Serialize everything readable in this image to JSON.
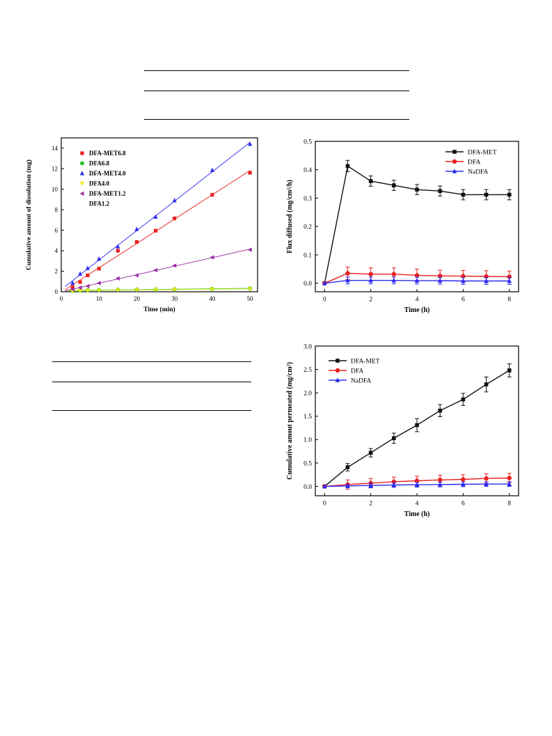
{
  "chart_data": [
    {
      "type": "scatter",
      "title": "",
      "xlabel": "Time (min)",
      "ylabel": "Cumulative amount of dissolution (mg)",
      "xlim": [
        0,
        52
      ],
      "ylim": [
        0,
        15
      ],
      "xticks": [
        0,
        10,
        20,
        30,
        40,
        50
      ],
      "yticks": [
        0,
        2,
        4,
        6,
        8,
        10,
        12,
        14
      ],
      "legend_position": "top-left",
      "fit_lines": true,
      "series": [
        {
          "name": "DFA-MET6.8",
          "color": "#e8201f",
          "marker": "square",
          "x": [
            3,
            5,
            7,
            10,
            15,
            20,
            25,
            30,
            40,
            50
          ],
          "y": [
            0.45,
            0.95,
            1.6,
            2.25,
            4.0,
            4.85,
            5.95,
            7.15,
            9.45,
            11.6
          ]
        },
        {
          "name": "DFA6.8",
          "color": "#28c828",
          "marker": "circle",
          "x": [
            3,
            5,
            7,
            10,
            15,
            20,
            25,
            30,
            40,
            50
          ],
          "y": [
            0.1,
            0.12,
            0.15,
            0.17,
            0.2,
            0.22,
            0.24,
            0.25,
            0.28,
            0.32
          ]
        },
        {
          "name": "DFA-MET4.0",
          "color": "#2b2bf0",
          "marker": "triangle-up",
          "x": [
            3,
            5,
            7,
            10,
            15,
            20,
            25,
            30,
            40,
            50
          ],
          "y": [
            0.85,
            1.75,
            2.3,
            3.2,
            4.4,
            6.1,
            7.3,
            8.9,
            11.85,
            14.4
          ]
        },
        {
          "name": "DFA4.0",
          "color": "#e8e81a",
          "marker": "triangle-down",
          "x": [
            3,
            5,
            7,
            10,
            15,
            20,
            25,
            30,
            40,
            50
          ],
          "y": [
            0.08,
            0.1,
            0.12,
            0.14,
            0.16,
            0.18,
            0.2,
            0.21,
            0.24,
            0.27
          ]
        },
        {
          "name": "DFA-MET1.2",
          "color": "#9a2fa6",
          "marker": "triangle-left",
          "x": [
            3,
            5,
            7,
            10,
            15,
            20,
            25,
            30,
            40,
            50
          ],
          "y": [
            0.25,
            0.4,
            0.55,
            0.85,
            1.3,
            1.6,
            2.1,
            2.55,
            3.35,
            4.1
          ]
        },
        {
          "name": "DFA1.2",
          "color": "#5a5a5a",
          "marker": "none",
          "x": [],
          "y": []
        }
      ]
    },
    {
      "type": "line",
      "title": "",
      "xlabel": "Time (h)",
      "ylabel": "Flux diffused (mg/cm²/h)",
      "xlim": [
        -0.4,
        8.4
      ],
      "ylim": [
        -0.03,
        0.5
      ],
      "xticks": [
        0,
        2,
        4,
        6,
        8
      ],
      "yticks": [
        0.0,
        0.1,
        0.2,
        0.3,
        0.4,
        0.5
      ],
      "ytick_decimals": 1,
      "legend_position": "top-right",
      "series": [
        {
          "name": "DFA-MET",
          "color": "#111111",
          "marker": "square",
          "x": [
            0,
            1,
            2,
            3,
            4,
            5,
            6,
            7,
            8
          ],
          "y": [
            0.0,
            0.413,
            0.36,
            0.345,
            0.33,
            0.325,
            0.312,
            0.312,
            0.312
          ],
          "err": [
            0,
            0.02,
            0.018,
            0.018,
            0.018,
            0.018,
            0.018,
            0.018,
            0.018
          ]
        },
        {
          "name": "DFA",
          "color": "#e8201f",
          "marker": "circle",
          "x": [
            0,
            1,
            2,
            3,
            4,
            5,
            6,
            7,
            8
          ],
          "y": [
            0.0,
            0.035,
            0.032,
            0.032,
            0.028,
            0.026,
            0.025,
            0.024,
            0.023
          ],
          "err": [
            0,
            0.022,
            0.022,
            0.022,
            0.022,
            0.02,
            0.02,
            0.02,
            0.02
          ]
        },
        {
          "name": "NaDFA",
          "color": "#2b2bf0",
          "marker": "triangle-up",
          "x": [
            0,
            1,
            2,
            3,
            4,
            5,
            6,
            7,
            8
          ],
          "y": [
            0.0,
            0.01,
            0.01,
            0.01,
            0.009,
            0.009,
            0.008,
            0.008,
            0.008
          ],
          "err": [
            0,
            0.012,
            0.012,
            0.012,
            0.012,
            0.012,
            0.012,
            0.012,
            0.012
          ]
        }
      ]
    },
    {
      "type": "line",
      "title": "",
      "xlabel": "Time (h)",
      "ylabel": "Cumulative amout permeated (mg/cm²)",
      "xlim": [
        -0.4,
        8.4
      ],
      "ylim": [
        -0.2,
        3.0
      ],
      "xticks": [
        0,
        2,
        4,
        6,
        8
      ],
      "yticks": [
        0.0,
        0.5,
        1.0,
        1.5,
        2.0,
        2.5,
        3.0
      ],
      "ytick_decimals": 1,
      "legend_position": "top-left",
      "series": [
        {
          "name": "DFA-MET",
          "color": "#111111",
          "marker": "square",
          "x": [
            0,
            1,
            2,
            3,
            4,
            5,
            6,
            7,
            8
          ],
          "y": [
            0.0,
            0.41,
            0.72,
            1.03,
            1.31,
            1.62,
            1.86,
            2.18,
            2.48
          ],
          "err": [
            0,
            0.08,
            0.09,
            0.11,
            0.14,
            0.13,
            0.13,
            0.16,
            0.14
          ]
        },
        {
          "name": "DFA",
          "color": "#e8201f",
          "marker": "circle",
          "x": [
            0,
            1,
            2,
            3,
            4,
            5,
            6,
            7,
            8
          ],
          "y": [
            0.0,
            0.04,
            0.07,
            0.1,
            0.12,
            0.14,
            0.15,
            0.17,
            0.18
          ],
          "err": [
            0,
            0.1,
            0.1,
            0.1,
            0.1,
            0.1,
            0.1,
            0.1,
            0.1
          ]
        },
        {
          "name": "NaDFA",
          "color": "#2b2bf0",
          "marker": "triangle-up",
          "x": [
            0,
            1,
            2,
            3,
            4,
            5,
            6,
            7,
            8
          ],
          "y": [
            0.0,
            0.01,
            0.02,
            0.03,
            0.035,
            0.04,
            0.045,
            0.05,
            0.05
          ],
          "err": [
            0,
            0.04,
            0.05,
            0.05,
            0.05,
            0.05,
            0.05,
            0.05,
            0.05
          ]
        }
      ]
    }
  ]
}
